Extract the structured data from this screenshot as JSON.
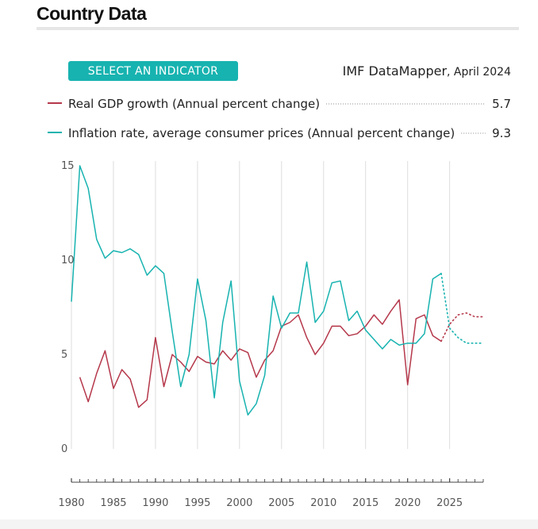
{
  "page": {
    "title": "Country Data",
    "select_button": "SELECT AN INDICATOR",
    "source": "IMF DataMapper",
    "source_date": ", April 2024"
  },
  "chart_data": {
    "type": "line",
    "title": "",
    "xlabel": "",
    "ylabel": "",
    "xlim": [
      1980,
      2029
    ],
    "ylim": [
      0,
      15
    ],
    "y_ticks": [
      0,
      5,
      10,
      15
    ],
    "x_ticks": [
      1980,
      1985,
      1990,
      1995,
      2000,
      2005,
      2010,
      2015,
      2020,
      2025
    ],
    "projection_start": 2024,
    "legend_position": "top",
    "series": [
      {
        "name": "Real GDP growth (Annual percent change)",
        "color": "#b5384b",
        "legend_value": "5.7",
        "x": [
          1981,
          1982,
          1983,
          1984,
          1985,
          1986,
          1987,
          1988,
          1989,
          1990,
          1991,
          1992,
          1993,
          1994,
          1995,
          1996,
          1997,
          1998,
          1999,
          2000,
          2001,
          2002,
          2003,
          2004,
          2005,
          2006,
          2007,
          2008,
          2009,
          2010,
          2011,
          2012,
          2013,
          2014,
          2015,
          2016,
          2017,
          2018,
          2019,
          2020,
          2021,
          2022,
          2023,
          2024,
          2025,
          2026,
          2027,
          2028,
          2029
        ],
        "values": [
          3.8,
          2.5,
          4.0,
          5.2,
          3.2,
          4.2,
          3.7,
          2.2,
          2.6,
          5.9,
          3.3,
          5.0,
          4.6,
          4.1,
          4.9,
          4.6,
          4.5,
          5.2,
          4.7,
          5.3,
          5.1,
          3.8,
          4.7,
          5.2,
          6.5,
          6.7,
          7.1,
          5.9,
          5.0,
          5.6,
          6.5,
          6.5,
          6.0,
          6.1,
          6.5,
          7.1,
          6.6,
          7.3,
          7.9,
          3.4,
          6.9,
          7.1,
          6.0,
          5.7,
          6.6,
          7.1,
          7.2,
          7.0,
          7.0
        ]
      },
      {
        "name": "Inflation rate, average consumer prices (Annual percent change)",
        "color": "#17b3b0",
        "legend_value": "9.3",
        "x": [
          1980,
          1981,
          1982,
          1983,
          1984,
          1985,
          1986,
          1987,
          1988,
          1989,
          1990,
          1991,
          1992,
          1993,
          1994,
          1995,
          1996,
          1997,
          1998,
          1999,
          2000,
          2001,
          2002,
          2003,
          2004,
          2005,
          2006,
          2007,
          2008,
          2009,
          2010,
          2011,
          2012,
          2013,
          2014,
          2015,
          2016,
          2017,
          2018,
          2019,
          2020,
          2021,
          2022,
          2023,
          2024,
          2025,
          2026,
          2027,
          2028,
          2029
        ],
        "values": [
          7.8,
          15.0,
          13.8,
          11.1,
          10.1,
          10.5,
          10.4,
          10.6,
          10.3,
          9.2,
          9.7,
          9.3,
          6.2,
          3.3,
          5.0,
          9.0,
          6.8,
          2.7,
          6.7,
          8.9,
          3.6,
          1.8,
          2.4,
          3.9,
          8.1,
          6.4,
          7.2,
          7.2,
          9.9,
          6.7,
          7.3,
          8.8,
          8.9,
          6.8,
          7.3,
          6.3,
          5.8,
          5.3,
          5.8,
          5.5,
          5.6,
          5.6,
          6.1,
          9.0,
          9.3,
          6.4,
          5.9,
          5.6,
          5.6,
          5.6
        ]
      }
    ]
  }
}
